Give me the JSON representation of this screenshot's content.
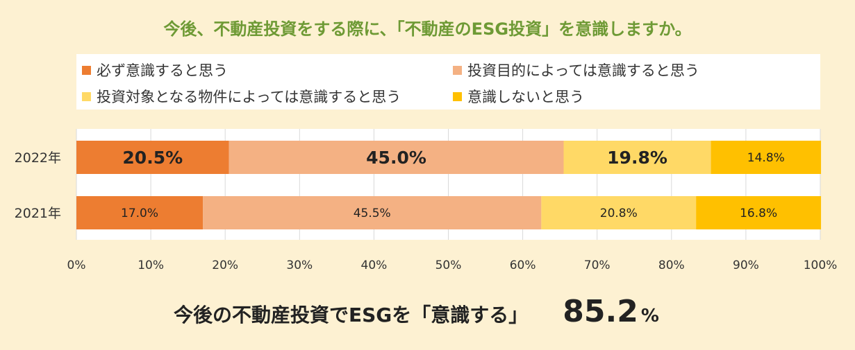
{
  "title": "今後、不動産投資をする際に、「不動産のESG投資」を意識しますか。",
  "legend": [
    {
      "label": "必ず意識すると思う",
      "color": "#ed7d31"
    },
    {
      "label": "投資目的によっては意識すると思う",
      "color": "#f4b183"
    },
    {
      "label": "投資対象となる物件によっては意識すると思う",
      "color": "#ffd966"
    },
    {
      "label": "意識しないと思う",
      "color": "#ffc000"
    }
  ],
  "summary": {
    "message": "今後の不動産投資でESGを「意識する」",
    "value": "85.2",
    "unit": "%"
  },
  "chart_data": {
    "type": "bar",
    "orientation": "horizontal",
    "stacked": "percent",
    "categories": [
      "2022年",
      "2021年"
    ],
    "series": [
      {
        "name": "必ず意識すると思う",
        "values": [
          20.5,
          17.0
        ],
        "labels": [
          "20.5%",
          "17.0%"
        ]
      },
      {
        "name": "投資目的によっては意識すると思う",
        "values": [
          45.0,
          45.5
        ],
        "labels": [
          "45.0%",
          "45.5%"
        ]
      },
      {
        "name": "投資対象となる物件によっては意識すると思う",
        "values": [
          19.8,
          20.8
        ],
        "labels": [
          "19.8%",
          "20.8%"
        ]
      },
      {
        "name": "意識しないと思う",
        "values": [
          14.8,
          16.8
        ],
        "labels": [
          "14.8%",
          "16.8%"
        ]
      }
    ],
    "emphasized_category": "2022年",
    "xlim": [
      0,
      100
    ],
    "xticks": [
      "0%",
      "10%",
      "20%",
      "30%",
      "40%",
      "50%",
      "60%",
      "70%",
      "80%",
      "90%",
      "100%"
    ],
    "grid": true,
    "legend_position": "top"
  }
}
